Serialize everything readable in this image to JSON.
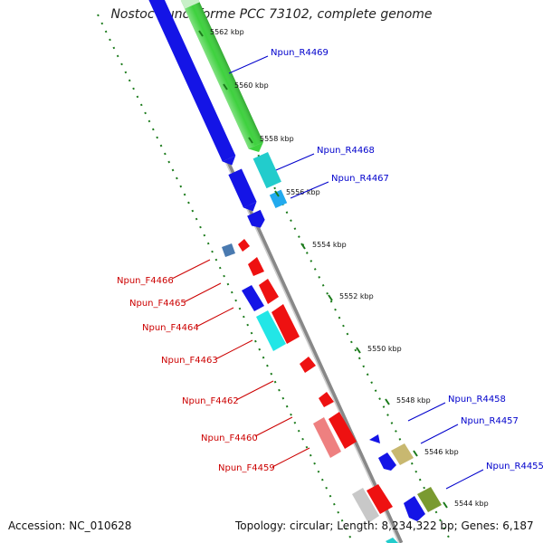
{
  "title": "Nostoc punctiforme PCC 73102, complete genome",
  "footer": {
    "accession": "Accession: NC_010628",
    "summary": "Topology: circular; Length: 8,234,322 bp; Genes: 6,187"
  },
  "colors": {
    "reverse_label": "#0000cc",
    "forward_label": "#cc0000",
    "ruler": "#1a7a1a",
    "backbone": "#888888"
  },
  "ticks": [
    "5562 kbp",
    "5560 kbp",
    "5558 kbp",
    "5556 kbp",
    "5554 kbp",
    "5552 kbp",
    "5550 kbp",
    "5548 kbp",
    "5546 kbp",
    "5544 kbp"
  ],
  "reverse_labels": [
    "Npun_R4469",
    "Npun_R4468",
    "Npun_R4467",
    "Npun_R4458",
    "Npun_R4457",
    "Npun_R4455"
  ],
  "forward_labels": [
    "Npun_F4466",
    "Npun_F4465",
    "Npun_F4464",
    "Npun_F4463",
    "Npun_F4462",
    "Npun_F4460",
    "Npun_F4459"
  ]
}
